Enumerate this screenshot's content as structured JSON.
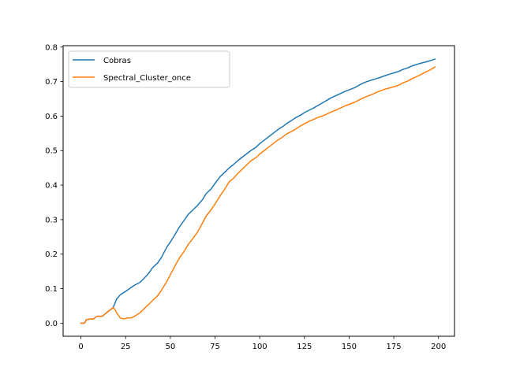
{
  "chart_data": {
    "type": "line",
    "title": "",
    "xlabel": "",
    "ylabel": "",
    "xlim": [
      -9.95,
      208.95
    ],
    "ylim": [
      -0.038,
      0.804
    ],
    "xticks": [
      0,
      25,
      50,
      75,
      100,
      125,
      150,
      175,
      200
    ],
    "yticks": [
      0.0,
      0.1,
      0.2,
      0.3,
      0.4,
      0.5,
      0.6,
      0.7,
      0.8
    ],
    "xtick_labels": [
      "0",
      "25",
      "50",
      "75",
      "100",
      "125",
      "150",
      "175",
      "200"
    ],
    "ytick_labels": [
      "0.0",
      "0.1",
      "0.2",
      "0.3",
      "0.4",
      "0.5",
      "0.6",
      "0.7",
      "0.8"
    ],
    "grid": false,
    "legend_position": "upper-left",
    "series": [
      {
        "name": "Cobras",
        "color": "#1f77b4",
        "points": [
          [
            0,
            0.0
          ],
          [
            2,
            0.0
          ],
          [
            3,
            0.01
          ],
          [
            5,
            0.012
          ],
          [
            7,
            0.012
          ],
          [
            9,
            0.02
          ],
          [
            12,
            0.02
          ],
          [
            15,
            0.033
          ],
          [
            18,
            0.045
          ],
          [
            20,
            0.07
          ],
          [
            22,
            0.082
          ],
          [
            25,
            0.092
          ],
          [
            28,
            0.103
          ],
          [
            30,
            0.11
          ],
          [
            33,
            0.118
          ],
          [
            35,
            0.128
          ],
          [
            38,
            0.145
          ],
          [
            40,
            0.16
          ],
          [
            43,
            0.175
          ],
          [
            45,
            0.19
          ],
          [
            48,
            0.22
          ],
          [
            50,
            0.235
          ],
          [
            53,
            0.26
          ],
          [
            55,
            0.278
          ],
          [
            58,
            0.3
          ],
          [
            60,
            0.315
          ],
          [
            63,
            0.33
          ],
          [
            65,
            0.34
          ],
          [
            68,
            0.358
          ],
          [
            70,
            0.375
          ],
          [
            73,
            0.39
          ],
          [
            75,
            0.405
          ],
          [
            78,
            0.425
          ],
          [
            80,
            0.435
          ],
          [
            83,
            0.45
          ],
          [
            85,
            0.458
          ],
          [
            88,
            0.472
          ],
          [
            90,
            0.48
          ],
          [
            93,
            0.492
          ],
          [
            95,
            0.5
          ],
          [
            98,
            0.51
          ],
          [
            100,
            0.52
          ],
          [
            103,
            0.532
          ],
          [
            105,
            0.54
          ],
          [
            108,
            0.552
          ],
          [
            110,
            0.56
          ],
          [
            113,
            0.57
          ],
          [
            115,
            0.578
          ],
          [
            118,
            0.588
          ],
          [
            120,
            0.595
          ],
          [
            123,
            0.603
          ],
          [
            125,
            0.61
          ],
          [
            128,
            0.618
          ],
          [
            130,
            0.623
          ],
          [
            133,
            0.632
          ],
          [
            135,
            0.638
          ],
          [
            138,
            0.647
          ],
          [
            140,
            0.653
          ],
          [
            143,
            0.66
          ],
          [
            145,
            0.665
          ],
          [
            148,
            0.672
          ],
          [
            150,
            0.676
          ],
          [
            153,
            0.682
          ],
          [
            155,
            0.688
          ],
          [
            158,
            0.696
          ],
          [
            160,
            0.7
          ],
          [
            163,
            0.705
          ],
          [
            165,
            0.708
          ],
          [
            168,
            0.713
          ],
          [
            170,
            0.717
          ],
          [
            173,
            0.722
          ],
          [
            175,
            0.725
          ],
          [
            178,
            0.73
          ],
          [
            180,
            0.735
          ],
          [
            183,
            0.74
          ],
          [
            185,
            0.745
          ],
          [
            188,
            0.75
          ],
          [
            190,
            0.753
          ],
          [
            193,
            0.757
          ],
          [
            195,
            0.76
          ],
          [
            198,
            0.765
          ]
        ]
      },
      {
        "name": "Spectral_Cluster_once",
        "color": "#ff7f0e",
        "points": [
          [
            0,
            0.0
          ],
          [
            2,
            0.0
          ],
          [
            3,
            0.01
          ],
          [
            5,
            0.012
          ],
          [
            7,
            0.012
          ],
          [
            9,
            0.02
          ],
          [
            12,
            0.02
          ],
          [
            15,
            0.033
          ],
          [
            18,
            0.045
          ],
          [
            19,
            0.04
          ],
          [
            20,
            0.03
          ],
          [
            22,
            0.015
          ],
          [
            24,
            0.012
          ],
          [
            26,
            0.015
          ],
          [
            28,
            0.015
          ],
          [
            30,
            0.02
          ],
          [
            33,
            0.03
          ],
          [
            35,
            0.04
          ],
          [
            38,
            0.055
          ],
          [
            40,
            0.065
          ],
          [
            43,
            0.08
          ],
          [
            45,
            0.095
          ],
          [
            48,
            0.12
          ],
          [
            50,
            0.14
          ],
          [
            53,
            0.17
          ],
          [
            55,
            0.188
          ],
          [
            58,
            0.21
          ],
          [
            60,
            0.228
          ],
          [
            63,
            0.248
          ],
          [
            65,
            0.262
          ],
          [
            68,
            0.29
          ],
          [
            70,
            0.31
          ],
          [
            73,
            0.33
          ],
          [
            75,
            0.345
          ],
          [
            78,
            0.37
          ],
          [
            80,
            0.385
          ],
          [
            83,
            0.41
          ],
          [
            85,
            0.418
          ],
          [
            88,
            0.435
          ],
          [
            90,
            0.445
          ],
          [
            93,
            0.46
          ],
          [
            95,
            0.47
          ],
          [
            98,
            0.48
          ],
          [
            100,
            0.49
          ],
          [
            103,
            0.502
          ],
          [
            105,
            0.51
          ],
          [
            108,
            0.522
          ],
          [
            110,
            0.53
          ],
          [
            113,
            0.54
          ],
          [
            115,
            0.548
          ],
          [
            118,
            0.556
          ],
          [
            120,
            0.562
          ],
          [
            123,
            0.572
          ],
          [
            125,
            0.578
          ],
          [
            128,
            0.586
          ],
          [
            130,
            0.59
          ],
          [
            133,
            0.597
          ],
          [
            135,
            0.6
          ],
          [
            138,
            0.607
          ],
          [
            140,
            0.612
          ],
          [
            143,
            0.618
          ],
          [
            145,
            0.623
          ],
          [
            148,
            0.63
          ],
          [
            150,
            0.634
          ],
          [
            153,
            0.64
          ],
          [
            155,
            0.645
          ],
          [
            158,
            0.653
          ],
          [
            160,
            0.657
          ],
          [
            163,
            0.663
          ],
          [
            165,
            0.668
          ],
          [
            168,
            0.674
          ],
          [
            170,
            0.678
          ],
          [
            173,
            0.682
          ],
          [
            175,
            0.685
          ],
          [
            178,
            0.69
          ],
          [
            180,
            0.696
          ],
          [
            183,
            0.702
          ],
          [
            185,
            0.708
          ],
          [
            188,
            0.715
          ],
          [
            190,
            0.72
          ],
          [
            193,
            0.728
          ],
          [
            195,
            0.733
          ],
          [
            198,
            0.742
          ]
        ]
      }
    ]
  }
}
